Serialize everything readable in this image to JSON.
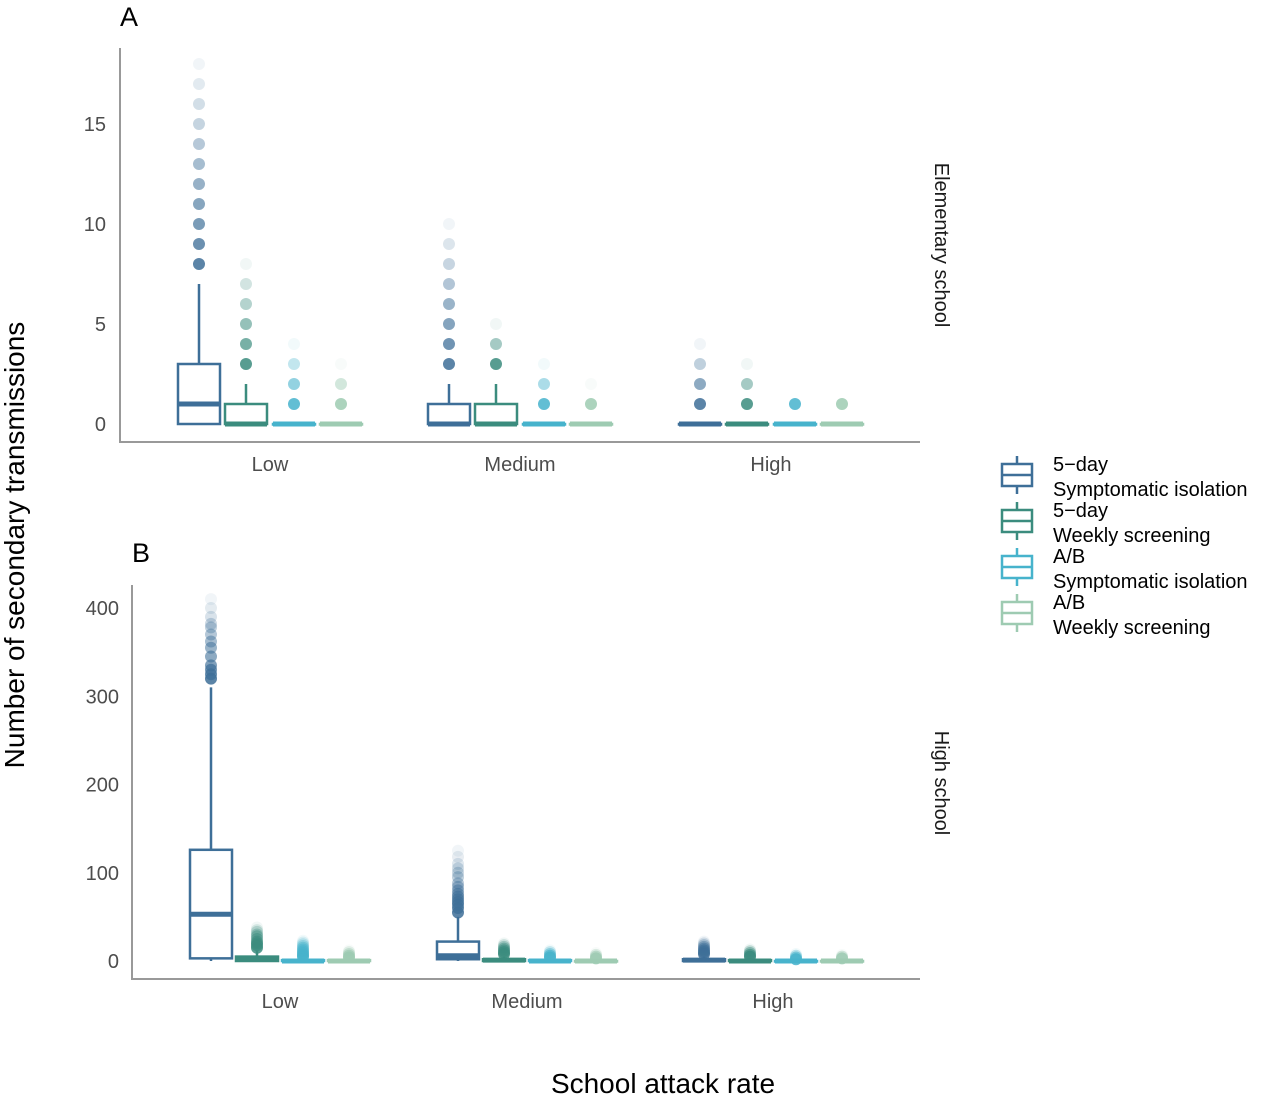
{
  "chart_data": [
    {
      "type": "box",
      "panel_label": "A",
      "facet": "Elementary school",
      "categories": [
        "Low",
        "Medium",
        "High"
      ],
      "ylim": [
        0,
        18
      ],
      "yticks": [
        0,
        5,
        10,
        15
      ],
      "series": [
        {
          "name": "5−day Symptomatic isolation",
          "color": "#3e6f98",
          "boxes": [
            {
              "q1": 0,
              "median": 1,
              "q3": 3,
              "whisker_low": 0,
              "whisker_high": 7,
              "outliers": [
                8,
                9,
                10,
                11,
                12,
                13,
                14,
                15,
                16,
                17,
                18
              ]
            },
            {
              "q1": 0,
              "median": 0,
              "q3": 1,
              "whisker_low": 0,
              "whisker_high": 2,
              "outliers": [
                3,
                4,
                5,
                6,
                7,
                8,
                9,
                10
              ]
            },
            {
              "q1": 0,
              "median": 0,
              "q3": 0,
              "whisker_low": 0,
              "whisker_high": 0,
              "outliers": [
                1,
                2,
                3,
                4
              ]
            }
          ]
        },
        {
          "name": "5−day Weekly screening",
          "color": "#3b8c7e",
          "boxes": [
            {
              "q1": 0,
              "median": 0,
              "q3": 1,
              "whisker_low": 0,
              "whisker_high": 2,
              "outliers": [
                3,
                4,
                5,
                6,
                7,
                8
              ]
            },
            {
              "q1": 0,
              "median": 0,
              "q3": 1,
              "whisker_low": 0,
              "whisker_high": 2,
              "outliers": [
                3,
                4,
                5
              ]
            },
            {
              "q1": 0,
              "median": 0,
              "q3": 0,
              "whisker_low": 0,
              "whisker_high": 0,
              "outliers": [
                1,
                2,
                3
              ]
            }
          ]
        },
        {
          "name": "A/B Symptomatic isolation",
          "color": "#47b3cc",
          "boxes": [
            {
              "q1": 0,
              "median": 0,
              "q3": 0,
              "whisker_low": 0,
              "whisker_high": 0,
              "outliers": [
                1,
                2,
                3,
                4
              ]
            },
            {
              "q1": 0,
              "median": 0,
              "q3": 0,
              "whisker_low": 0,
              "whisker_high": 0,
              "outliers": [
                1,
                2,
                3
              ]
            },
            {
              "q1": 0,
              "median": 0,
              "q3": 0,
              "whisker_low": 0,
              "whisker_high": 0,
              "outliers": [
                1
              ]
            }
          ]
        },
        {
          "name": "A/B Weekly screening",
          "color": "#9ecbb2",
          "boxes": [
            {
              "q1": 0,
              "median": 0,
              "q3": 0,
              "whisker_low": 0,
              "whisker_high": 0,
              "outliers": [
                1,
                2,
                3
              ]
            },
            {
              "q1": 0,
              "median": 0,
              "q3": 0,
              "whisker_low": 0,
              "whisker_high": 0,
              "outliers": [
                1,
                2
              ]
            },
            {
              "q1": 0,
              "median": 0,
              "q3": 0,
              "whisker_low": 0,
              "whisker_high": 0,
              "outliers": [
                1
              ]
            }
          ]
        }
      ]
    },
    {
      "type": "box",
      "panel_label": "B",
      "facet": "High school",
      "categories": [
        "Low",
        "Medium",
        "High"
      ],
      "ylim": [
        0,
        425
      ],
      "yticks": [
        0,
        100,
        200,
        300,
        400
      ],
      "series": [
        {
          "name": "5−day Symptomatic isolation",
          "color": "#3e6f98",
          "boxes": [
            {
              "q1": 3,
              "median": 53,
              "q3": 126,
              "whisker_low": 0,
              "whisker_high": 310,
              "outliers": [
                320,
                325,
                330,
                335,
                345,
                355,
                362,
                370,
                378,
                382,
                390,
                400,
                410
              ]
            },
            {
              "q1": 2,
              "median": 6,
              "q3": 22,
              "whisker_low": 0,
              "whisker_high": 50,
              "outliers": [
                55,
                60,
                64,
                67,
                70,
                73,
                76,
                80,
                84,
                88,
                95,
                100,
                105,
                110,
                118,
                125
              ]
            },
            {
              "q1": 0,
              "median": 1,
              "q3": 2,
              "whisker_low": 0,
              "whisker_high": 5,
              "outliers": [
                8,
                10,
                12,
                14,
                16,
                18,
                20,
                22
              ]
            }
          ]
        },
        {
          "name": "5−day Weekly screening",
          "color": "#3b8c7e",
          "boxes": [
            {
              "q1": 0,
              "median": 2,
              "q3": 5,
              "whisker_low": 0,
              "whisker_high": 12,
              "outliers": [
                15,
                18,
                20,
                22,
                25,
                28,
                30,
                33,
                35,
                38
              ]
            },
            {
              "q1": 0,
              "median": 1,
              "q3": 2,
              "whisker_low": 0,
              "whisker_high": 5,
              "outliers": [
                8,
                10,
                12,
                14,
                16,
                18,
                20
              ]
            },
            {
              "q1": 0,
              "median": 0,
              "q3": 1,
              "whisker_low": 0,
              "whisker_high": 3,
              "outliers": [
                5,
                7,
                9,
                11,
                13
              ]
            }
          ]
        },
        {
          "name": "A/B Symptomatic isolation",
          "color": "#47b3cc",
          "boxes": [
            {
              "q1": 0,
              "median": 0,
              "q3": 1,
              "whisker_low": 0,
              "whisker_high": 3,
              "outliers": [
                5,
                7,
                9,
                11,
                13,
                15,
                17,
                19,
                21,
                23
              ]
            },
            {
              "q1": 0,
              "median": 0,
              "q3": 1,
              "whisker_low": 0,
              "whisker_high": 2,
              "outliers": [
                4,
                6,
                8,
                10,
                12
              ]
            },
            {
              "q1": 0,
              "median": 0,
              "q3": 0,
              "whisker_low": 0,
              "whisker_high": 1,
              "outliers": [
                2,
                4,
                6,
                8
              ]
            }
          ]
        },
        {
          "name": "A/B Weekly screening",
          "color": "#9ecbb2",
          "boxes": [
            {
              "q1": 0,
              "median": 0,
              "q3": 1,
              "whisker_low": 0,
              "whisker_high": 2,
              "outliers": [
                4,
                6,
                8,
                10,
                12
              ]
            },
            {
              "q1": 0,
              "median": 0,
              "q3": 0,
              "whisker_low": 0,
              "whisker_high": 1,
              "outliers": [
                3,
                5,
                7,
                9
              ]
            },
            {
              "q1": 0,
              "median": 0,
              "q3": 0,
              "whisker_low": 0,
              "whisker_high": 1,
              "outliers": [
                3,
                5,
                7
              ]
            }
          ]
        }
      ]
    }
  ],
  "axes": {
    "ylabel": "Number of secondary transmissions",
    "xlabel": "School attack rate"
  },
  "legend": {
    "position": "right",
    "items": [
      {
        "line1": "5−day",
        "line2": "Symptomatic isolation",
        "color": "#3e6f98"
      },
      {
        "line1": "5−day",
        "line2": "Weekly screening",
        "color": "#3b8c7e"
      },
      {
        "line1": "A/B",
        "line2": "Symptomatic isolation",
        "color": "#47b3cc"
      },
      {
        "line1": "A/B",
        "line2": "Weekly screening",
        "color": "#9ecbb2"
      }
    ]
  }
}
